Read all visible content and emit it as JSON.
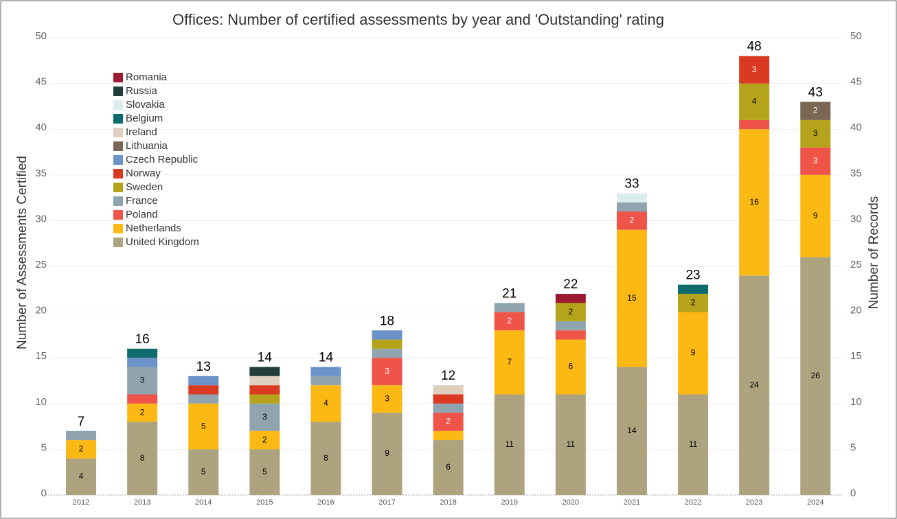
{
  "chart_data": {
    "type": "stacked-bar",
    "title": "Offices: Number of certified assessments by year and 'Outstanding' rating",
    "y_label": "Number of Assessments Certified",
    "y2_label": "Number of Records",
    "categories": [
      "2012",
      "2013",
      "2014",
      "2015",
      "2016",
      "2017",
      "2018",
      "2019",
      "2020",
      "2021",
      "2022",
      "2023",
      "2024"
    ],
    "series": [
      {
        "name": "United Kingdom",
        "color": "#ada37e",
        "values": [
          4,
          8,
          5,
          5,
          8,
          9,
          6,
          11,
          11,
          14,
          11,
          24,
          26
        ]
      },
      {
        "name": "Netherlands",
        "color": "#fdb913",
        "values": [
          2,
          2,
          5,
          2,
          4,
          3,
          1,
          7,
          6,
          15,
          9,
          16,
          9
        ]
      },
      {
        "name": "Poland",
        "color": "#ee5448",
        "values": [
          0,
          1,
          0,
          0,
          0,
          3,
          2,
          2,
          1,
          2,
          0,
          1,
          3
        ]
      },
      {
        "name": "France",
        "color": "#8fa4ae",
        "values": [
          1,
          3,
          1,
          3,
          1,
          1,
          1,
          1,
          1,
          1,
          0,
          0,
          0
        ]
      },
      {
        "name": "Sweden",
        "color": "#b5a31b",
        "values": [
          0,
          0,
          0,
          1,
          0,
          1,
          0,
          0,
          2,
          0,
          2,
          4,
          3
        ]
      },
      {
        "name": "Norway",
        "color": "#db3a22",
        "values": [
          0,
          0,
          1,
          1,
          0,
          0,
          1,
          0,
          0,
          0,
          0,
          3,
          0
        ]
      },
      {
        "name": "Czech Republic",
        "color": "#6b93c9",
        "values": [
          0,
          1,
          1,
          0,
          1,
          1,
          0,
          0,
          0,
          0,
          0,
          0,
          0
        ]
      },
      {
        "name": "Lithuania",
        "color": "#7a6652",
        "values": [
          0,
          0,
          0,
          0,
          0,
          0,
          0,
          0,
          0,
          0,
          0,
          0,
          2
        ]
      },
      {
        "name": "Ireland",
        "color": "#dfcfbf",
        "values": [
          0,
          0,
          0,
          1,
          0,
          0,
          1,
          0,
          0,
          0,
          0,
          0,
          0
        ]
      },
      {
        "name": "Belgium",
        "color": "#0d6b6b",
        "values": [
          0,
          1,
          0,
          0,
          0,
          0,
          0,
          0,
          0,
          0,
          1,
          0,
          0
        ]
      },
      {
        "name": "Slovakia",
        "color": "#dcedf0",
        "values": [
          0,
          0,
          0,
          0,
          0,
          0,
          0,
          0,
          0,
          1,
          0,
          0,
          0
        ]
      },
      {
        "name": "Russia",
        "color": "#213d3a",
        "values": [
          0,
          0,
          0,
          1,
          0,
          0,
          0,
          0,
          0,
          0,
          0,
          0,
          0
        ]
      },
      {
        "name": "Romania",
        "color": "#9b1c31",
        "values": [
          0,
          0,
          0,
          0,
          0,
          0,
          0,
          0,
          1,
          0,
          0,
          0,
          0
        ]
      }
    ],
    "totals": [
      7,
      16,
      13,
      14,
      14,
      18,
      12,
      21,
      22,
      33,
      23,
      48,
      43
    ],
    "ylim": [
      0,
      50
    ],
    "yticks": [
      0,
      5,
      10,
      15,
      20,
      25,
      30,
      35,
      40,
      45,
      50
    ],
    "y2lim": [
      0,
      50
    ],
    "y2ticks": [
      0,
      5,
      10,
      15,
      20,
      25,
      30,
      35,
      40,
      45,
      50
    ],
    "grid": true
  }
}
